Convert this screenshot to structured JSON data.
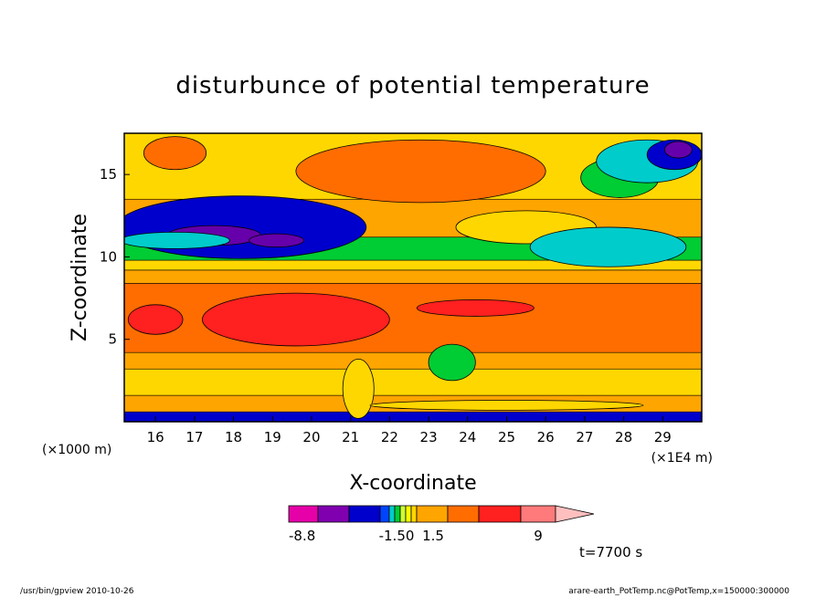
{
  "chart_data": {
    "type": "heatmap",
    "title": "disturbunce of potential temperature",
    "xlabel": "X-coordinate",
    "ylabel": "Z-coordinate",
    "x_unit_label": "(×1E4 m)",
    "y_unit_label": "(×1000 m)",
    "xlim": [
      15.2,
      30.0
    ],
    "ylim": [
      0.0,
      17.5
    ],
    "x_ticks": [
      "16",
      "17",
      "18",
      "19",
      "20",
      "21",
      "22",
      "23",
      "24",
      "25",
      "26",
      "27",
      "28",
      "29"
    ],
    "x_tick_values": [
      16,
      17,
      18,
      19,
      20,
      21,
      22,
      23,
      24,
      25,
      26,
      27,
      28,
      29
    ],
    "y_ticks": [
      "5",
      "10",
      "15"
    ],
    "y_tick_values": [
      5,
      10,
      15
    ],
    "contour_bands": [
      {
        "y0": 0.0,
        "y1": 0.6,
        "color": "#0000cc"
      },
      {
        "y0": 0.6,
        "y1": 1.6,
        "color": "#ffa500"
      },
      {
        "y0": 1.6,
        "y1": 3.2,
        "color": "#ffd700"
      },
      {
        "y0": 3.2,
        "y1": 4.2,
        "color": "#ffa500"
      },
      {
        "y0": 4.2,
        "y1": 8.4,
        "color": "#ff6d00"
      },
      {
        "y0": 8.4,
        "y1": 9.2,
        "color": "#ffa500"
      },
      {
        "y0": 9.2,
        "y1": 9.8,
        "color": "#ffd700"
      },
      {
        "y0": 9.8,
        "y1": 11.2,
        "color": "#00cc33"
      },
      {
        "y0": 11.2,
        "y1": 13.5,
        "color": "#ffa500"
      },
      {
        "y0": 13.5,
        "y1": 17.5,
        "color": "#ffd700"
      }
    ],
    "contour_patches": [
      {
        "cx": 19.6,
        "cy": 6.2,
        "rx": 2.4,
        "ry": 1.6,
        "color": "#ff2020"
      },
      {
        "cx": 16.0,
        "cy": 6.2,
        "rx": 0.7,
        "ry": 0.9,
        "color": "#ff2020"
      },
      {
        "cx": 24.2,
        "cy": 6.9,
        "rx": 1.5,
        "ry": 0.5,
        "color": "#ff2020"
      },
      {
        "cx": 18.2,
        "cy": 11.8,
        "rx": 3.2,
        "ry": 1.9,
        "color": "#0000cc"
      },
      {
        "cx": 17.5,
        "cy": 11.3,
        "rx": 1.2,
        "ry": 0.6,
        "color": "#6600aa"
      },
      {
        "cx": 19.1,
        "cy": 11.0,
        "rx": 0.7,
        "ry": 0.4,
        "color": "#6600aa"
      },
      {
        "cx": 16.5,
        "cy": 11.0,
        "rx": 1.4,
        "ry": 0.5,
        "color": "#00cccc"
      },
      {
        "cx": 22.8,
        "cy": 15.2,
        "rx": 3.2,
        "ry": 1.9,
        "color": "#ff6d00"
      },
      {
        "cx": 16.5,
        "cy": 16.3,
        "rx": 0.8,
        "ry": 1.0,
        "color": "#ff6d00"
      },
      {
        "cx": 25.5,
        "cy": 11.8,
        "rx": 1.8,
        "ry": 1.0,
        "color": "#ffd700"
      },
      {
        "cx": 27.6,
        "cy": 10.6,
        "rx": 2.0,
        "ry": 1.2,
        "color": "#00cccc"
      },
      {
        "cx": 27.9,
        "cy": 14.8,
        "rx": 1.0,
        "ry": 1.2,
        "color": "#00cc33"
      },
      {
        "cx": 28.6,
        "cy": 15.8,
        "rx": 1.3,
        "ry": 1.3,
        "color": "#00cccc"
      },
      {
        "cx": 29.3,
        "cy": 16.2,
        "rx": 0.7,
        "ry": 0.9,
        "color": "#0000cc"
      },
      {
        "cx": 29.4,
        "cy": 16.5,
        "rx": 0.35,
        "ry": 0.5,
        "color": "#6600aa"
      },
      {
        "cx": 23.6,
        "cy": 3.6,
        "rx": 0.6,
        "ry": 1.1,
        "color": "#00cc33"
      },
      {
        "cx": 21.2,
        "cy": 2.0,
        "rx": 0.4,
        "ry": 1.8,
        "color": "#ffd700"
      },
      {
        "cx": 25.0,
        "cy": 1.0,
        "rx": 3.5,
        "ry": 0.3,
        "color": "#ffd700"
      }
    ],
    "colorbar": {
      "type": "horizontal",
      "segments": [
        {
          "label": "-8.8",
          "color": "#e600a8"
        },
        {
          "label": "",
          "color": "#8000b0"
        },
        {
          "label": "-1.50",
          "color": "#0000cc"
        },
        {
          "label": "",
          "color": "#0044ff"
        },
        {
          "label": "",
          "color": "#00cccc"
        },
        {
          "label": "",
          "color": "#00cc33"
        },
        {
          "label": "",
          "color": "#ccff33"
        },
        {
          "label": "",
          "color": "#ffff00"
        },
        {
          "label": "1.5",
          "color": "#ffd700"
        },
        {
          "label": "",
          "color": "#ffa500"
        },
        {
          "label": "",
          "color": "#ff6d00"
        },
        {
          "label": "9",
          "color": "#ff2020"
        },
        {
          "label": "",
          "color": "#ff7a7a"
        }
      ],
      "tick_labels": [
        "-8.8",
        "-1.50",
        "1.5",
        "9"
      ],
      "arrow_color": "#ffbfbf"
    },
    "annotations": {
      "time_label": "t=7700 s",
      "footer_left": "/usr/bin/gpview   2010-10-26",
      "footer_right": "arare-earth_PotTemp.nc@PotTemp,x=150000:300000"
    }
  }
}
